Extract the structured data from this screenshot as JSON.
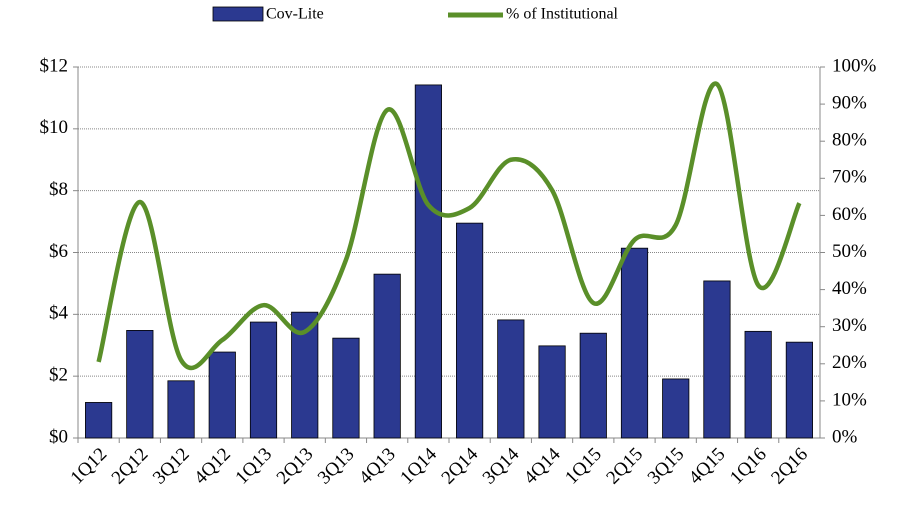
{
  "chart_data": {
    "type": "bar_line",
    "categories": [
      "1Q12",
      "2Q12",
      "3Q12",
      "4Q12",
      "1Q13",
      "2Q13",
      "3Q13",
      "4Q13",
      "1Q14",
      "2Q14",
      "3Q14",
      "4Q14",
      "1Q15",
      "2Q15",
      "3Q15",
      "4Q15",
      "1Q16",
      "2Q16"
    ],
    "series": [
      {
        "name": "Cov-Lite",
        "type": "bar",
        "color": "#2b3990",
        "values": [
          1.15,
          3.48,
          1.85,
          2.78,
          3.75,
          4.07,
          3.23,
          5.3,
          11.42,
          6.95,
          3.82,
          2.98,
          3.39,
          6.14,
          1.91,
          5.08,
          3.45,
          3.1
        ]
      },
      {
        "name": "% of Institutional",
        "type": "line",
        "axis": "y2",
        "color": "#5a8f29",
        "values": [
          20.5,
          63.6,
          21,
          26.4,
          35.8,
          28.6,
          48,
          88.4,
          62.8,
          62,
          75,
          66.8,
          36.4,
          53.4,
          57.4,
          95.4,
          41.2,
          63.3
        ]
      }
    ],
    "ylim": [
      0,
      12
    ],
    "yticks": [
      {
        "value": 0,
        "label": "$0"
      },
      {
        "value": 2,
        "label": "$2"
      },
      {
        "value": 4,
        "label": "$4"
      },
      {
        "value": 6,
        "label": "$6"
      },
      {
        "value": 8,
        "label": "$8"
      },
      {
        "value": 10,
        "label": "$10"
      },
      {
        "value": 12,
        "label": "$12"
      }
    ],
    "y2lim": [
      0,
      100
    ],
    "y2ticks": [
      {
        "value": 0,
        "label": "0%"
      },
      {
        "value": 10,
        "label": "10%"
      },
      {
        "value": 20,
        "label": "20%"
      },
      {
        "value": 30,
        "label": "30%"
      },
      {
        "value": 40,
        "label": "40%"
      },
      {
        "value": 50,
        "label": "50%"
      },
      {
        "value": 60,
        "label": "60%"
      },
      {
        "value": 70,
        "label": "70%"
      },
      {
        "value": 80,
        "label": "80%"
      },
      {
        "value": 90,
        "label": "90%"
      },
      {
        "value": 100,
        "label": "100%"
      }
    ],
    "grid": true,
    "legend": "top"
  }
}
